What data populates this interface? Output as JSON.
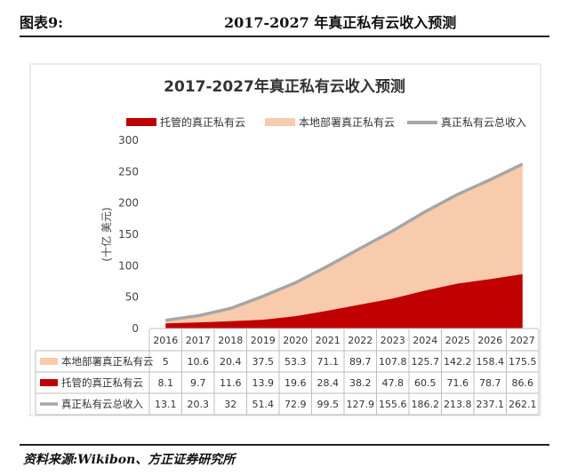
{
  "header": {
    "figure_label": "图表9:",
    "figure_title": "2017-2027 年真正私有云收入预测"
  },
  "source_note": "资料来源:Wikibon、方正证券研究所",
  "colors": {
    "hosted": "#c00000",
    "onprem": "#f8cbad",
    "total": "#a6a6a6"
  },
  "chart_data": {
    "type": "area",
    "title": "2017-2027年真正私有云收入预测",
    "ylabel": "(十亿 美元)",
    "ylim": [
      0,
      300
    ],
    "yticks": [
      0,
      50,
      100,
      150,
      200,
      250,
      300
    ],
    "grid": false,
    "legend_position": "top",
    "categories": [
      "2016",
      "2017",
      "2018",
      "2019",
      "2020",
      "2021",
      "2022",
      "2023",
      "2024",
      "2025",
      "2026",
      "2027"
    ],
    "series": [
      {
        "name": "托管的真正私有云",
        "kind": "stacked-area",
        "values": [
          8.1,
          9.7,
          11.6,
          13.9,
          19.6,
          28.4,
          38.2,
          47.8,
          60.5,
          71.6,
          78.7,
          86.6
        ]
      },
      {
        "name": "本地部署真正私有云",
        "kind": "stacked-area",
        "values": [
          5,
          10.6,
          20.4,
          37.5,
          53.3,
          71.1,
          89.7,
          107.8,
          125.7,
          142.2,
          158.4,
          175.5
        ]
      },
      {
        "name": "真正私有云总收入",
        "kind": "line",
        "values": [
          13.1,
          20.3,
          32,
          51.4,
          72.9,
          99.5,
          127.9,
          155.6,
          186.2,
          213.8,
          237.1,
          262.1
        ]
      }
    ],
    "table_rows": [
      {
        "label": "本地部署真正私有云",
        "values": [
          "5",
          "10.6",
          "20.4",
          "37.5",
          "53.3",
          "71.1",
          "89.7",
          "107.8",
          "125.7",
          "142.2",
          "158.4",
          "175.5"
        ]
      },
      {
        "label": "托管的真正私有云",
        "values": [
          "8.1",
          "9.7",
          "11.6",
          "13.9",
          "19.6",
          "28.4",
          "38.2",
          "47.8",
          "60.5",
          "71.6",
          "78.7",
          "86.6"
        ]
      },
      {
        "label": "真正私有云总收入",
        "values": [
          "13.1",
          "20.3",
          "32",
          "51.4",
          "72.9",
          "99.5",
          "127.9",
          "155.6",
          "186.2",
          "213.8",
          "237.1",
          "262.1"
        ]
      }
    ]
  }
}
